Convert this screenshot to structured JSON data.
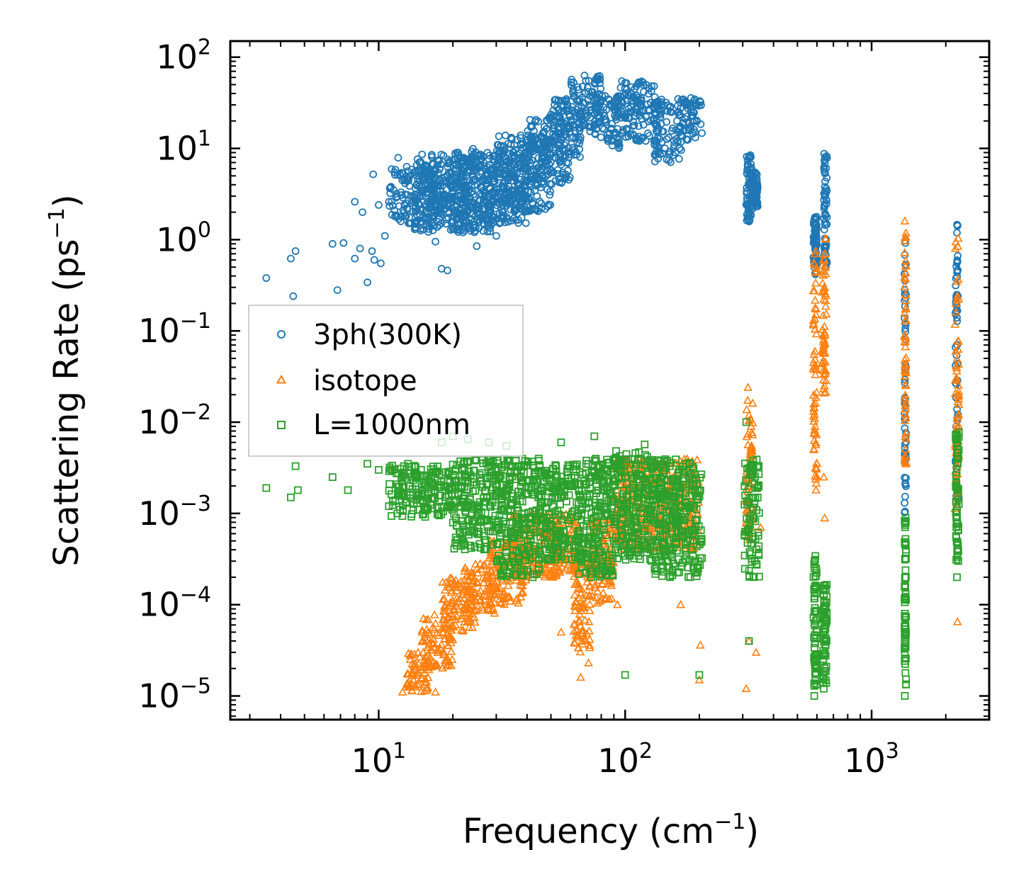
{
  "chart_data": {
    "type": "scatter",
    "xscale": "log",
    "yscale": "log",
    "xlabel": "Frequency (cm⁻¹)",
    "xlabel_main": "Frequency (cm",
    "xlabel_exp": "−1",
    "xlabel_close": ")",
    "ylabel": "Scattering Rate (ps⁻¹)",
    "ylabel_main": "Scattering Rate (ps",
    "ylabel_exp": "−1",
    "ylabel_close": ")",
    "xlim": [
      2.5,
      3000
    ],
    "ylim": [
      5.5e-06,
      150
    ],
    "xticks": [
      {
        "value": 10,
        "base": "10",
        "exp": "1"
      },
      {
        "value": 100,
        "base": "10",
        "exp": "2"
      },
      {
        "value": 1000,
        "base": "10",
        "exp": "3"
      }
    ],
    "yticks": [
      {
        "value": 1e-05,
        "base": "10",
        "exp": "−5"
      },
      {
        "value": 0.0001,
        "base": "10",
        "exp": "−4"
      },
      {
        "value": 0.001,
        "base": "10",
        "exp": "−3"
      },
      {
        "value": 0.01,
        "base": "10",
        "exp": "−2"
      },
      {
        "value": 0.1,
        "base": "10",
        "exp": "−1"
      },
      {
        "value": 1,
        "base": "10",
        "exp": "0"
      },
      {
        "value": 10,
        "base": "10",
        "exp": "1"
      },
      {
        "value": 100,
        "base": "10",
        "exp": "2"
      }
    ],
    "legend_position": "center-left",
    "series": [
      {
        "name": "3ph(300K)",
        "label": "3ph(300K)",
        "marker": "circle",
        "color": "#1f77b4",
        "points": [
          [
            3.5,
            0.38
          ],
          [
            4.5,
            0.24
          ],
          [
            4.4,
            0.62
          ],
          [
            4.6,
            0.75
          ],
          [
            6.5,
            0.9
          ],
          [
            6.8,
            0.28
          ],
          [
            7.2,
            0.92
          ],
          [
            8,
            0.62
          ],
          [
            8.4,
            0.8
          ],
          [
            9,
            0.34
          ],
          [
            9.4,
            0.75
          ],
          [
            9.6,
            0.6
          ],
          [
            10.2,
            0.55
          ],
          [
            8,
            2.6
          ],
          [
            8.6,
            2.0
          ],
          [
            9.5,
            5.2
          ],
          [
            10,
            2.4
          ],
          [
            10.6,
            1.1
          ],
          [
            11,
            2.6
          ],
          [
            11.5,
            3.5
          ],
          [
            12,
            7.9
          ],
          [
            12.4,
            5.4
          ],
          [
            13,
            6.3
          ],
          [
            13.5,
            3.0
          ],
          [
            14,
            1.3
          ],
          [
            15,
            8.6
          ],
          [
            16,
            1.5
          ],
          [
            17,
            0.95
          ],
          [
            18,
            0.48
          ],
          [
            19,
            0.46
          ],
          [
            20,
            1.3
          ],
          [
            22,
            1.2
          ],
          [
            25,
            0.85
          ],
          [
            18,
            2.0
          ],
          [
            20,
            6.5
          ],
          [
            21,
            9.0
          ],
          [
            23,
            5.5
          ],
          [
            28,
            3.0
          ],
          [
            30,
            1.1
          ],
          [
            32,
            2.0
          ]
        ],
        "bands": [
          {
            "x": [
              11,
              20
            ],
            "y": [
              1.5,
              6
            ]
          },
          {
            "x": [
              14,
              30
            ],
            "y": [
              1.2,
              9
            ]
          },
          {
            "x": [
              20,
              40
            ],
            "y": [
              1.5,
              10
            ]
          },
          {
            "x": [
              30,
              50
            ],
            "y": [
              2.0,
              14
            ]
          },
          {
            "x": [
              40,
              60
            ],
            "y": [
              4,
              22
            ]
          },
          {
            "x": [
              50,
              66
            ],
            "y": [
              8,
              35
            ]
          },
          {
            "x": [
              60,
              80
            ],
            "y": [
              15,
              65
            ]
          },
          {
            "x": [
              75,
              95
            ],
            "y": [
              10,
              40
            ]
          },
          {
            "x": [
              90,
              135
            ],
            "y": [
              12,
              55
            ]
          },
          {
            "x": [
              130,
              170
            ],
            "y": [
              7,
              35
            ]
          },
          {
            "x": [
              165,
              205
            ],
            "y": [
              12,
              36
            ]
          },
          {
            "x": [
              310,
              325
            ],
            "y": [
              1.5,
              8.5
            ]
          },
          {
            "x": [
              325,
              345
            ],
            "y": [
              2.2,
              5.5
            ]
          },
          {
            "x": [
              580,
              600
            ],
            "y": [
              0.4,
              1.8
            ]
          },
          {
            "x": [
              640,
              660
            ],
            "y": [
              0.5,
              9.5
            ]
          },
          {
            "x": [
              1360,
              1380
            ],
            "y": [
              0.001,
              1.0
            ]
          },
          {
            "x": [
              2190,
              2240
            ],
            "y": [
              0.0012,
              2.1
            ]
          }
        ]
      },
      {
        "name": "isotope",
        "label": "isotope",
        "marker": "triangle",
        "color": "#ff7f0e",
        "points": [
          [
            12.5,
            1.1e-05
          ],
          [
            14,
            1.3e-05
          ],
          [
            17,
            1.1e-05
          ],
          [
            55,
            5e-05
          ],
          [
            66,
            1.6e-05
          ],
          [
            71,
            2.3e-05
          ],
          [
            93,
            0.0001
          ],
          [
            168,
            0.0001
          ],
          [
            200,
            1.5e-05
          ],
          [
            202,
            3.6e-05
          ],
          [
            310,
            1.2e-05
          ],
          [
            318,
            4e-05
          ],
          [
            340,
            3e-05
          ],
          [
            315,
            0.024
          ],
          [
            355,
            0.0007
          ],
          [
            590,
            0.009
          ],
          [
            595,
            0.0018
          ],
          [
            640,
            0.0025
          ],
          [
            645,
            0.00089
          ],
          [
            1365,
            1.6
          ],
          [
            2230,
            6.5e-05
          ]
        ],
        "bands": [
          {
            "x": [
              13,
              16
            ],
            "y": [
              1.1e-05,
              3e-05
            ]
          },
          {
            "x": [
              15,
              20
            ],
            "y": [
              2e-05,
              8e-05
            ]
          },
          {
            "x": [
              18,
              25
            ],
            "y": [
              5e-05,
              0.0002
            ]
          },
          {
            "x": [
              22,
              30
            ],
            "y": [
              8e-05,
              0.0003
            ]
          },
          {
            "x": [
              28,
              40
            ],
            "y": [
              0.0001,
              0.0005
            ]
          },
          {
            "x": [
              35,
              55
            ],
            "y": [
              0.0002,
              0.001
            ]
          },
          {
            "x": [
              50,
              65
            ],
            "y": [
              0.0002,
              0.001
            ]
          },
          {
            "x": [
              62,
              72
            ],
            "y": [
              3e-05,
              0.0003
            ]
          },
          {
            "x": [
              70,
              90
            ],
            "y": [
              0.0001,
              0.0009
            ]
          },
          {
            "x": [
              90,
              200
            ],
            "y": [
              0.0004,
              0.004
            ]
          },
          {
            "x": [
              310,
              330
            ],
            "y": [
              0.0005,
              0.018
            ]
          },
          {
            "x": [
              580,
              600
            ],
            "y": [
              0.002,
              0.8
            ]
          },
          {
            "x": [
              630,
              655
            ],
            "y": [
              0.02,
              1.2
            ]
          },
          {
            "x": [
              1360,
              1380
            ],
            "y": [
              0.003,
              1.3
            ]
          },
          {
            "x": [
              2180,
              2260
            ],
            "y": [
              0.001,
              1.1
            ]
          }
        ]
      },
      {
        "name": "L=1000nm",
        "label": "L=1000nm",
        "marker": "square",
        "color": "#2ca02c",
        "points": [
          [
            3.5,
            0.0019
          ],
          [
            4.4,
            0.0015
          ],
          [
            4.7,
            0.0018
          ],
          [
            4.6,
            0.0033
          ],
          [
            6.5,
            0.0025
          ],
          [
            7.5,
            0.0018
          ],
          [
            9,
            0.0035
          ],
          [
            10,
            0.003
          ],
          [
            11,
            0.0012
          ],
          [
            13,
            0.0013
          ],
          [
            18,
            0.006
          ],
          [
            20,
            0.007
          ],
          [
            23,
            0.0065
          ],
          [
            28,
            0.006
          ],
          [
            33,
            0.0055
          ],
          [
            55,
            0.006
          ],
          [
            75,
            0.007
          ],
          [
            100,
            1.7e-05
          ],
          [
            120,
            0.0057
          ],
          [
            200,
            1.7e-05
          ],
          [
            310,
            0.01
          ],
          [
            318,
            4e-05
          ],
          [
            585,
            1e-05
          ],
          [
            640,
            1.2e-05
          ],
          [
            1365,
            1e-05
          ],
          [
            2220,
            0.0002
          ]
        ],
        "bands": [
          {
            "x": [
              11,
              20
            ],
            "y": [
              0.0009,
              0.0035
            ]
          },
          {
            "x": [
              20,
              30
            ],
            "y": [
              0.0004,
              0.004
            ]
          },
          {
            "x": [
              30,
              45
            ],
            "y": [
              0.0002,
              0.004
            ]
          },
          {
            "x": [
              45,
              65
            ],
            "y": [
              0.0003,
              0.0035
            ]
          },
          {
            "x": [
              65,
              90
            ],
            "y": [
              0.0002,
              0.004
            ]
          },
          {
            "x": [
              90,
              130
            ],
            "y": [
              0.0003,
              0.005
            ]
          },
          {
            "x": [
              130,
              205
            ],
            "y": [
              0.0002,
              0.004
            ]
          },
          {
            "x": [
              305,
              350
            ],
            "y": [
              0.0002,
              0.004
            ]
          },
          {
            "x": [
              580,
              600
            ],
            "y": [
              1.2e-05,
              0.00037
            ]
          },
          {
            "x": [
              635,
              660
            ],
            "y": [
              1.3e-05,
              0.00018
            ]
          },
          {
            "x": [
              1360,
              1380
            ],
            "y": [
              1.3e-05,
              0.001
            ]
          },
          {
            "x": [
              2190,
              2260
            ],
            "y": [
              0.0003,
              0.008
            ]
          }
        ]
      }
    ]
  }
}
